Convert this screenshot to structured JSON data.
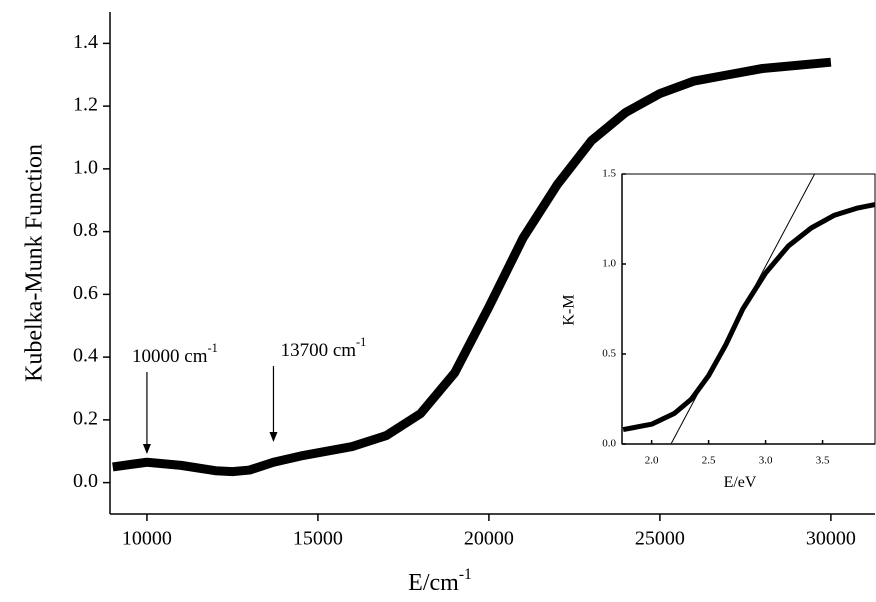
{
  "chart_data": [
    {
      "type": "line",
      "xlabel": {
        "text": "E/cm",
        "sup": "-1"
      },
      "ylabel": "Kubelka-Munk Function",
      "x": [
        9000,
        10000,
        11000,
        12000,
        12500,
        13000,
        13700,
        14500,
        15000,
        16000,
        17000,
        18000,
        19000,
        20000,
        21000,
        22000,
        23000,
        24000,
        25000,
        26000,
        27000,
        28000,
        29000,
        30000
      ],
      "series": [
        {
          "color": "#000000",
          "values": [
            0.05,
            0.065,
            0.055,
            0.038,
            0.035,
            0.04,
            0.065,
            0.085,
            0.095,
            0.115,
            0.15,
            0.22,
            0.35,
            0.56,
            0.78,
            0.95,
            1.09,
            1.18,
            1.24,
            1.28,
            1.3,
            1.32,
            1.33,
            1.34
          ]
        }
      ],
      "xlim": [
        8920,
        31290
      ],
      "ylim": [
        -0.1,
        1.5
      ],
      "xticks": [
        10000,
        15000,
        20000,
        25000,
        30000
      ],
      "yticks": [
        {
          "value": 0,
          "label": "0.0"
        },
        {
          "value": 0.2,
          "label": "0.2"
        },
        {
          "value": 0.4,
          "label": "0.4"
        },
        {
          "value": 0.6,
          "label": "0.6"
        },
        {
          "value": 0.8,
          "label": "0.8"
        },
        {
          "value": 1.0,
          "label": "1.0"
        },
        {
          "value": 1.2,
          "label": "1.2"
        },
        {
          "value": 1.4,
          "label": "1.4"
        }
      ],
      "annotations": [
        {
          "text": "10000 cm",
          "sup": "-1",
          "at": 10000
        },
        {
          "text": "13700 cm",
          "sup": "-1",
          "at": 13700
        }
      ]
    },
    {
      "type": "line",
      "xlabel": {
        "text": "E/eV"
      },
      "ylabel": "K-M",
      "x": [
        1.75,
        2.0,
        2.2,
        2.35,
        2.5,
        2.65,
        2.8,
        3.0,
        3.2,
        3.4,
        3.6,
        3.8,
        3.96
      ],
      "series": [
        {
          "color": "#000000",
          "values": [
            0.08,
            0.11,
            0.17,
            0.25,
            0.38,
            0.55,
            0.75,
            0.95,
            1.1,
            1.2,
            1.27,
            1.31,
            1.33
          ]
        }
      ],
      "fit_line": {
        "x": [
          2.17,
          3.43
        ],
        "y": [
          0,
          1.5
        ]
      },
      "xlim": [
        1.74,
        3.96
      ],
      "ylim": [
        0,
        1.5
      ],
      "xticks": [
        {
          "value": 2,
          "label": "2.0"
        },
        2.5,
        {
          "value": 3,
          "label": "3.0"
        },
        3.5
      ],
      "yticks": [
        {
          "value": 0,
          "label": "0.0"
        },
        0.5,
        {
          "value": 1,
          "label": "1.0"
        },
        1.5
      ]
    }
  ]
}
